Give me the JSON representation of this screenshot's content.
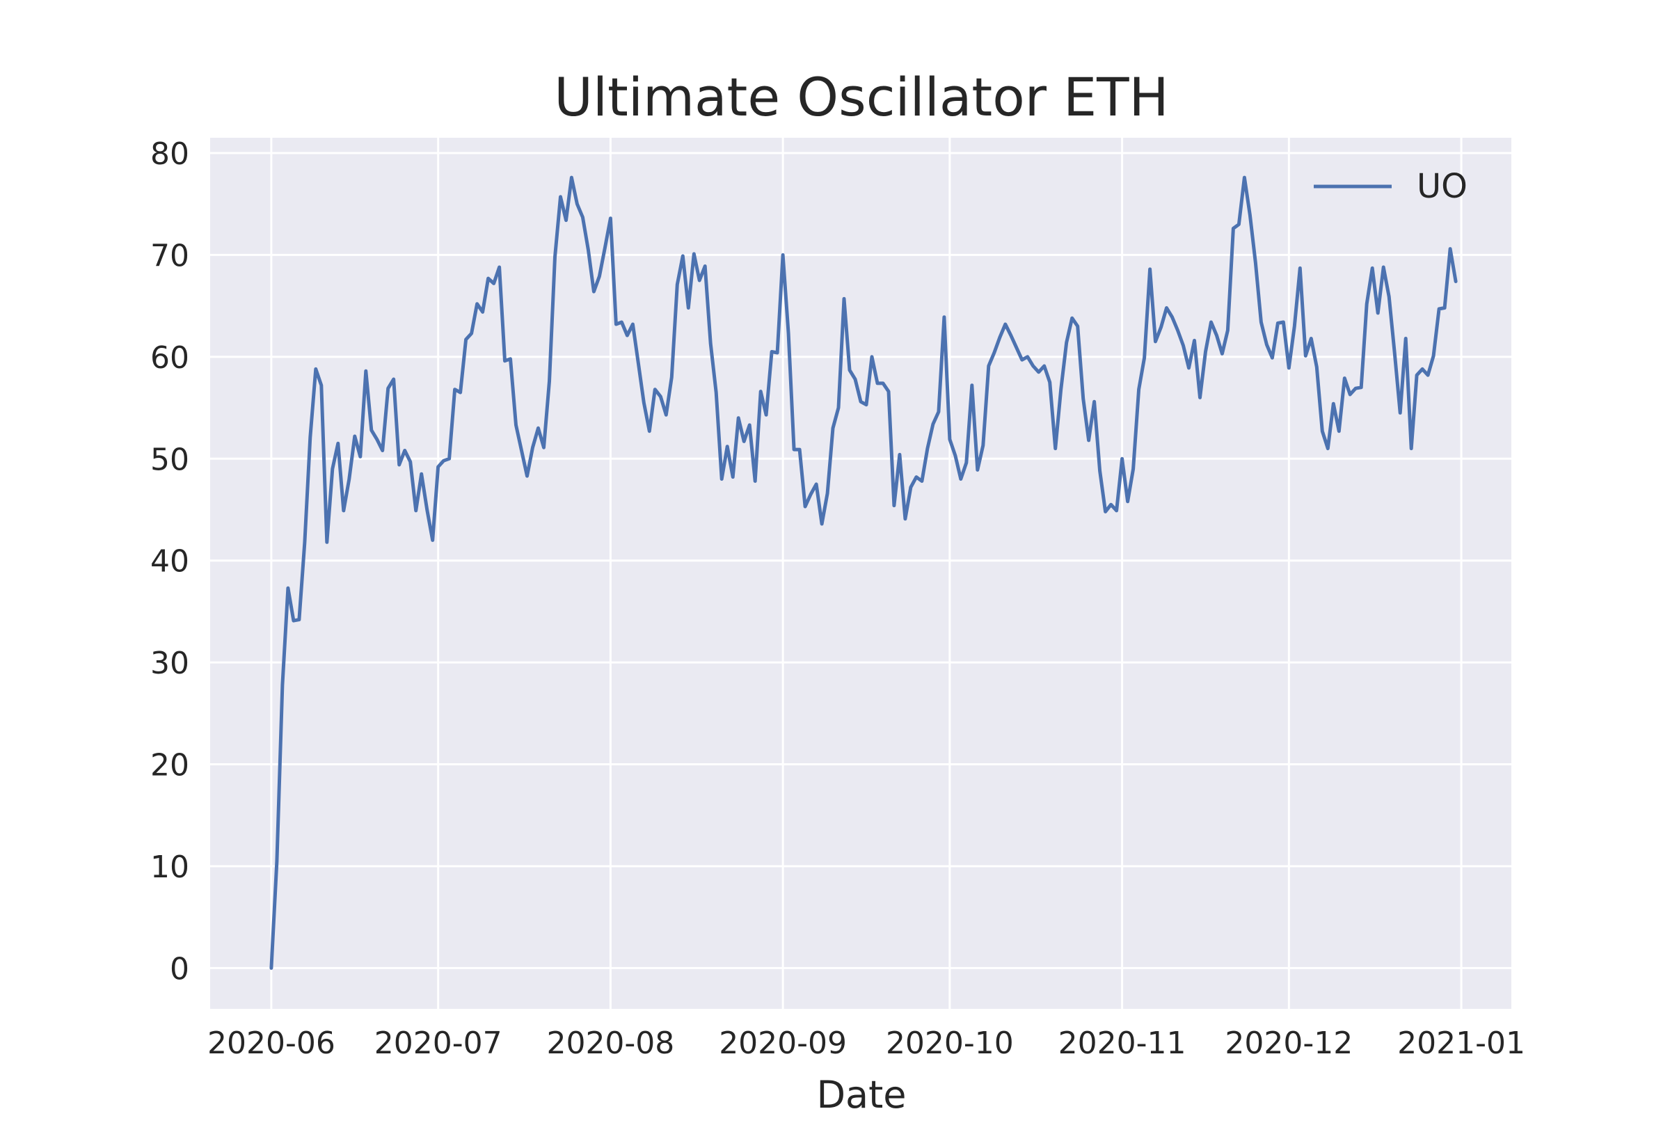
{
  "chart_data": {
    "type": "line",
    "title": "Ultimate Oscillator ETH",
    "xlabel": "Date",
    "ylabel": "",
    "ylim": [
      -4,
      81.5
    ],
    "xlim": [
      "2020-05-21",
      "2021-01-10"
    ],
    "x_ticks": [
      "2020-06",
      "2020-07",
      "2020-08",
      "2020-09",
      "2020-10",
      "2020-11",
      "2020-12",
      "2021-01"
    ],
    "y_ticks": [
      0,
      10,
      20,
      30,
      40,
      50,
      60,
      70,
      80
    ],
    "grid": true,
    "legend": "top-right",
    "colors": {
      "UO": "#4c72b0",
      "background": "#eaeaf2",
      "grid": "#ffffff"
    },
    "series": [
      {
        "name": "UO",
        "x": [
          "2020-06-01",
          "2020-06-02",
          "2020-06-03",
          "2020-06-04",
          "2020-06-05",
          "2020-06-06",
          "2020-06-07",
          "2020-06-08",
          "2020-06-09",
          "2020-06-10",
          "2020-06-11",
          "2020-06-12",
          "2020-06-13",
          "2020-06-14",
          "2020-06-15",
          "2020-06-16",
          "2020-06-17",
          "2020-06-18",
          "2020-06-19",
          "2020-06-20",
          "2020-06-21",
          "2020-06-22",
          "2020-06-23",
          "2020-06-24",
          "2020-06-25",
          "2020-06-26",
          "2020-06-27",
          "2020-06-28",
          "2020-06-29",
          "2020-06-30",
          "2020-07-01",
          "2020-07-02",
          "2020-07-03",
          "2020-07-04",
          "2020-07-05",
          "2020-07-06",
          "2020-07-07",
          "2020-07-08",
          "2020-07-09",
          "2020-07-10",
          "2020-07-11",
          "2020-07-12",
          "2020-07-13",
          "2020-07-14",
          "2020-07-15",
          "2020-07-16",
          "2020-07-17",
          "2020-07-18",
          "2020-07-19",
          "2020-07-20",
          "2020-07-21",
          "2020-07-22",
          "2020-07-23",
          "2020-07-24",
          "2020-07-25",
          "2020-07-26",
          "2020-07-27",
          "2020-07-28",
          "2020-07-29",
          "2020-07-30",
          "2020-07-31",
          "2020-08-01",
          "2020-08-02",
          "2020-08-03",
          "2020-08-04",
          "2020-08-05",
          "2020-08-06",
          "2020-08-07",
          "2020-08-08",
          "2020-08-09",
          "2020-08-10",
          "2020-08-11",
          "2020-08-12",
          "2020-08-13",
          "2020-08-14",
          "2020-08-15",
          "2020-08-16",
          "2020-08-17",
          "2020-08-18",
          "2020-08-19",
          "2020-08-20",
          "2020-08-21",
          "2020-08-22",
          "2020-08-23",
          "2020-08-24",
          "2020-08-25",
          "2020-08-26",
          "2020-08-27",
          "2020-08-28",
          "2020-08-29",
          "2020-08-30",
          "2020-08-31",
          "2020-09-01",
          "2020-09-02",
          "2020-09-03",
          "2020-09-04",
          "2020-09-05",
          "2020-09-06",
          "2020-09-07",
          "2020-09-08",
          "2020-09-09",
          "2020-09-10",
          "2020-09-11",
          "2020-09-12",
          "2020-09-13",
          "2020-09-14",
          "2020-09-15",
          "2020-09-16",
          "2020-09-17",
          "2020-09-18",
          "2020-09-19",
          "2020-09-20",
          "2020-09-21",
          "2020-09-22",
          "2020-09-23",
          "2020-09-24",
          "2020-09-25",
          "2020-09-26",
          "2020-09-27",
          "2020-09-28",
          "2020-09-29",
          "2020-09-30",
          "2020-10-01",
          "2020-10-02",
          "2020-10-03",
          "2020-10-04",
          "2020-10-05",
          "2020-10-06",
          "2020-10-07",
          "2020-10-08",
          "2020-10-09",
          "2020-10-10",
          "2020-10-11",
          "2020-10-12",
          "2020-10-13",
          "2020-10-14",
          "2020-10-15",
          "2020-10-16",
          "2020-10-17",
          "2020-10-18",
          "2020-10-19",
          "2020-10-20",
          "2020-10-21",
          "2020-10-22",
          "2020-10-23",
          "2020-10-24",
          "2020-10-25",
          "2020-10-26",
          "2020-10-27",
          "2020-10-28",
          "2020-10-29",
          "2020-10-30",
          "2020-10-31",
          "2020-11-01",
          "2020-11-02",
          "2020-11-03",
          "2020-11-04",
          "2020-11-05",
          "2020-11-06",
          "2020-11-07",
          "2020-11-08",
          "2020-11-09",
          "2020-11-10",
          "2020-11-11",
          "2020-11-12",
          "2020-11-13",
          "2020-11-14",
          "2020-11-15",
          "2020-11-16",
          "2020-11-17",
          "2020-11-18",
          "2020-11-19",
          "2020-11-20",
          "2020-11-21",
          "2020-11-22",
          "2020-11-23",
          "2020-11-24",
          "2020-11-25",
          "2020-11-26",
          "2020-11-27",
          "2020-11-28",
          "2020-11-29",
          "2020-11-30",
          "2020-12-01",
          "2020-12-02",
          "2020-12-03",
          "2020-12-04",
          "2020-12-05",
          "2020-12-06",
          "2020-12-07",
          "2020-12-08",
          "2020-12-09",
          "2020-12-10",
          "2020-12-11",
          "2020-12-12",
          "2020-12-13",
          "2020-12-14",
          "2020-12-15",
          "2020-12-16",
          "2020-12-17",
          "2020-12-18",
          "2020-12-19",
          "2020-12-20",
          "2020-12-21",
          "2020-12-22",
          "2020-12-23",
          "2020-12-24",
          "2020-12-25",
          "2020-12-26",
          "2020-12-27",
          "2020-12-28",
          "2020-12-29",
          "2020-12-30",
          "2020-12-31"
        ],
        "values": [
          0.0,
          10.5,
          27.8,
          37.3,
          34.1,
          34.2,
          41.8,
          52.1,
          58.8,
          57.2,
          41.8,
          49.0,
          51.5,
          44.9,
          48.0,
          52.2,
          50.2,
          58.6,
          52.8,
          51.9,
          50.8,
          56.9,
          57.8,
          49.4,
          50.8,
          49.7,
          44.9,
          48.5,
          45.0,
          42.0,
          49.2,
          49.8,
          50.0,
          56.8,
          56.5,
          61.7,
          62.3,
          65.2,
          64.4,
          67.7,
          67.2,
          68.8,
          59.6,
          59.8,
          53.3,
          50.8,
          48.3,
          51.1,
          53.0,
          51.1,
          57.6,
          69.8,
          75.7,
          73.4,
          77.6,
          75.0,
          73.7,
          70.5,
          66.4,
          67.9,
          70.7,
          73.6,
          63.2,
          63.4,
          62.1,
          63.2,
          59.4,
          55.5,
          52.7,
          56.8,
          56.1,
          54.3,
          58.0,
          67.1,
          69.9,
          64.8,
          70.1,
          67.5,
          68.9,
          61.3,
          56.5,
          48.0,
          51.2,
          48.2,
          54.0,
          51.7,
          53.3,
          47.8,
          56.6,
          54.3,
          60.5,
          60.4,
          70.0,
          62.3,
          50.9,
          50.9,
          45.3,
          46.5,
          47.5,
          43.6,
          46.6,
          53.0,
          55.0,
          65.7,
          58.7,
          57.8,
          55.6,
          55.3,
          60.0,
          57.4,
          57.4,
          56.6,
          45.4,
          50.4,
          44.1,
          47.2,
          48.2,
          47.8,
          51.0,
          53.4,
          54.6,
          63.9,
          51.9,
          50.3,
          48.0,
          49.6,
          57.2,
          48.9,
          51.3,
          59.1,
          60.4,
          61.9,
          63.2,
          62.1,
          60.9,
          59.7,
          60.0,
          59.1,
          58.5,
          59.1,
          57.5,
          51.0,
          56.8,
          61.4,
          63.8,
          63.0,
          55.9,
          51.8,
          55.6,
          48.8,
          44.8,
          45.5,
          44.9,
          50.0,
          45.8,
          49.0,
          56.8,
          59.9,
          68.6,
          61.5,
          62.9,
          64.8,
          63.9,
          62.6,
          61.1,
          58.9,
          61.6,
          56.0,
          60.5,
          63.4,
          62.1,
          60.3,
          62.6,
          72.6,
          73.0,
          77.6,
          73.9,
          69.2,
          63.4,
          61.2,
          59.9,
          63.3,
          63.4,
          58.9,
          63.0,
          68.7,
          60.1,
          61.8,
          59.0,
          52.7,
          51.0,
          55.4,
          52.7,
          57.9,
          56.3,
          56.9,
          57.0,
          65.2,
          68.7,
          64.3,
          68.8,
          65.9,
          60.4,
          54.5,
          61.8,
          51.0,
          58.2,
          58.8,
          58.2,
          60.1,
          64.7,
          64.8,
          70.6,
          67.4
        ]
      }
    ]
  }
}
